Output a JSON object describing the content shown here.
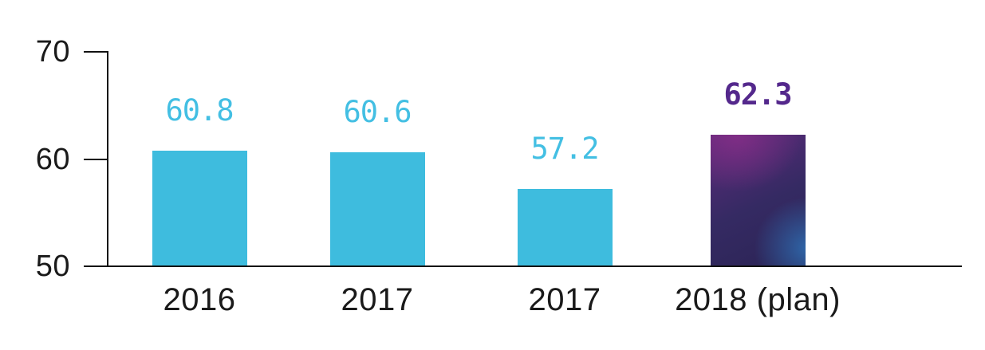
{
  "chart_data": {
    "type": "bar",
    "categories": [
      "2016",
      "2017",
      "2017",
      "2018 (plan)"
    ],
    "values": [
      60.8,
      60.6,
      57.2,
      62.3
    ],
    "value_labels": [
      "60.8",
      "60.6",
      "57.2",
      "62.3"
    ],
    "ylim": [
      50,
      70
    ],
    "yticks": [
      70,
      60,
      50
    ],
    "grid": false,
    "legend": "none",
    "highlight_index": 3,
    "colors": {
      "bar": "#3EBCDE",
      "value_label": "#43BFE3",
      "highlight_value_label": "#54288C",
      "highlight_gradient_top_left": "#872E88",
      "highlight_gradient_mid": "#352A63",
      "highlight_gradient_bottom_right": "#2F6CB0",
      "axis_line": "#111111",
      "tick_label": "#1a1a1a"
    }
  }
}
